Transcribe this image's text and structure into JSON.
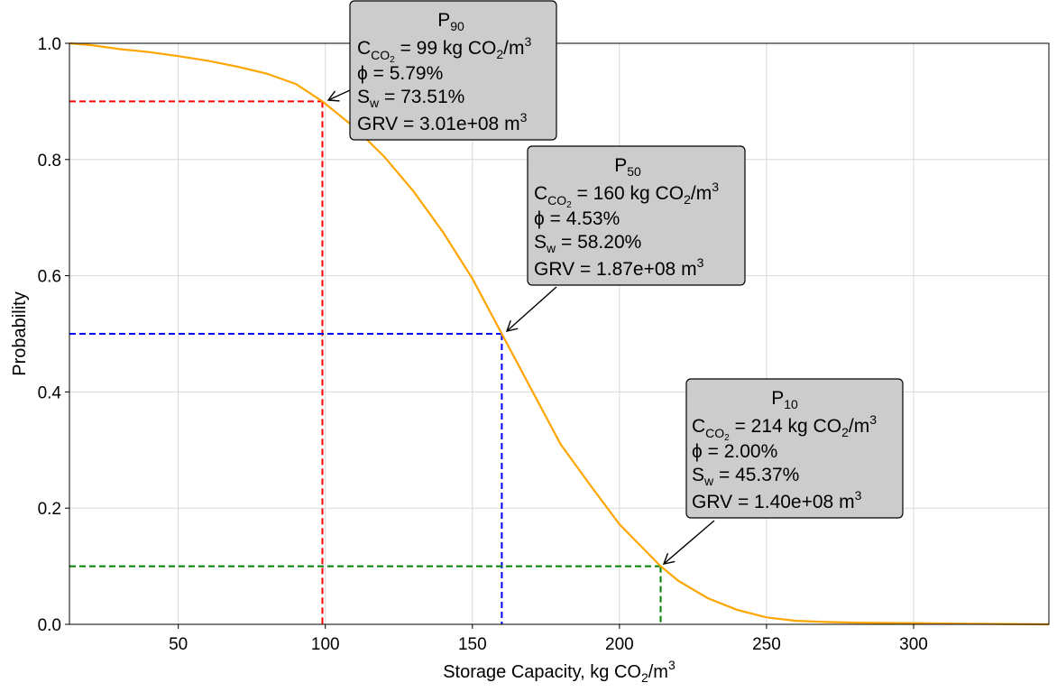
{
  "chart_data": {
    "type": "line",
    "xlabel": "Storage Capacity, kg CO",
    "xlabel_sub": "2",
    "xlabel_tail": "/m",
    "xlabel_sup": "3",
    "ylabel": "Probability",
    "xlim": [
      13,
      346
    ],
    "ylim": [
      0,
      1
    ],
    "xticks": [
      50,
      100,
      150,
      200,
      250,
      300
    ],
    "yticks": [
      0.0,
      0.2,
      0.4,
      0.6,
      0.8,
      1.0
    ],
    "xtick_labels": [
      "50",
      "100",
      "150",
      "200",
      "250",
      "300"
    ],
    "ytick_labels": [
      "0.0",
      "0.2",
      "0.4",
      "0.6",
      "0.8",
      "1.0"
    ],
    "grid": true,
    "colors": {
      "curve": "#FFA500",
      "p90": "#FF0000",
      "p50": "#0000FF",
      "p10": "#008000",
      "box": "#CCCCCC"
    },
    "series": [
      {
        "x": [
          13,
          20,
          30,
          40,
          50,
          60,
          70,
          80,
          90,
          99,
          110,
          120,
          130,
          140,
          150,
          160,
          170,
          180,
          190,
          200,
          214,
          220,
          230,
          240,
          250,
          260,
          270,
          280,
          300,
          320,
          346
        ],
        "y": [
          1.0,
          0.997,
          0.99,
          0.985,
          0.978,
          0.97,
          0.96,
          0.948,
          0.93,
          0.9,
          0.855,
          0.805,
          0.745,
          0.675,
          0.595,
          0.5,
          0.405,
          0.31,
          0.24,
          0.172,
          0.1,
          0.075,
          0.045,
          0.025,
          0.012,
          0.006,
          0.004,
          0.003,
          0.002,
          0.001,
          0.0
        ]
      }
    ],
    "markers": [
      {
        "name": "P90",
        "x": 99,
        "y": 0.9,
        "color": "#FF0000"
      },
      {
        "name": "P50",
        "x": 160,
        "y": 0.5,
        "color": "#0000FF"
      },
      {
        "name": "P10",
        "x": 214,
        "y": 0.1,
        "color": "#008000"
      }
    ],
    "annotations": [
      {
        "title": "P",
        "title_sub": "90",
        "c_label": "C",
        "c_sub": "CO",
        "c_subsub": "2",
        "c_value": " = 99 kg CO",
        "c_value_sub": "2",
        "c_value_tail": "/m",
        "c_value_sup": "3",
        "phi": "ϕ = 5.79%",
        "sw_label": "S",
        "sw_sub": "w",
        "sw_value": " = 73.51%",
        "grv": "GRV = 3.01e+08 m",
        "grv_sup": "3"
      },
      {
        "title": "P",
        "title_sub": "50",
        "c_label": "C",
        "c_sub": "CO",
        "c_subsub": "2",
        "c_value": " = 160 kg CO",
        "c_value_sub": "2",
        "c_value_tail": "/m",
        "c_value_sup": "3",
        "phi": "ϕ = 4.53%",
        "sw_label": "S",
        "sw_sub": "w",
        "sw_value": " = 58.20%",
        "grv": "GRV = 1.87e+08 m",
        "grv_sup": "3"
      },
      {
        "title": "P",
        "title_sub": "10",
        "c_label": "C",
        "c_sub": "CO",
        "c_subsub": "2",
        "c_value": " = 214 kg CO",
        "c_value_sub": "2",
        "c_value_tail": "/m",
        "c_value_sup": "3",
        "phi": "ϕ = 2.00%",
        "sw_label": "S",
        "sw_sub": "w",
        "sw_value": " = 45.37%",
        "grv": "GRV = 1.40e+08 m",
        "grv_sup": "3"
      }
    ]
  }
}
